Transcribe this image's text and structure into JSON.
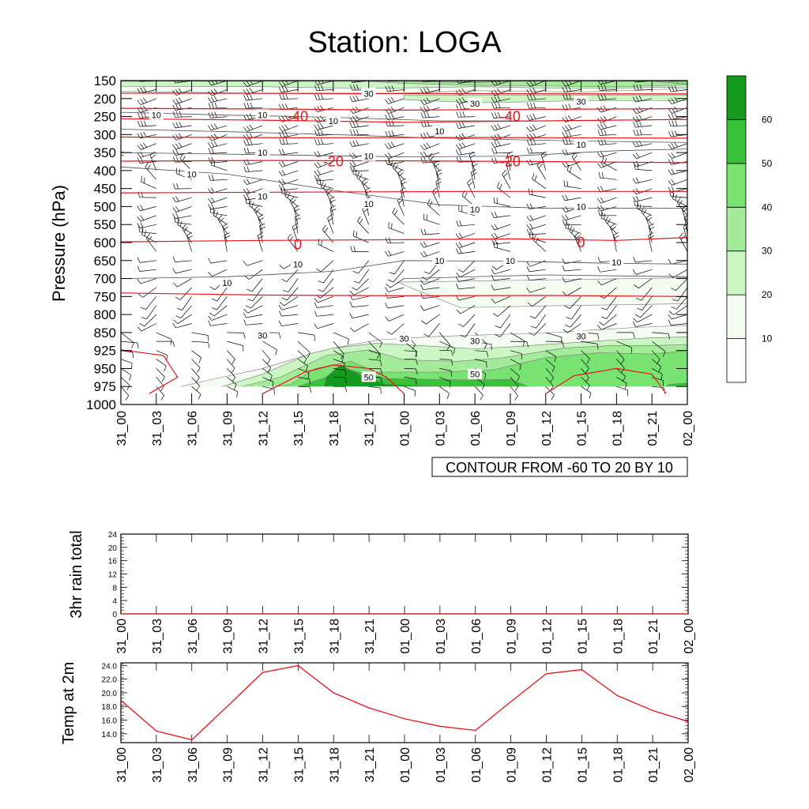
{
  "title": "Station: LOGA",
  "time_labels": [
    "31_00",
    "31_03",
    "31_06",
    "31_09",
    "31_12",
    "31_15",
    "31_18",
    "31_21",
    "01_00",
    "01_03",
    "01_06",
    "01_09",
    "01_12",
    "01_15",
    "01_18",
    "01_21",
    "02_00"
  ],
  "colors": {
    "temperature_contour": "#e8141a",
    "rh_fill_levels": [
      "#f4fcf2",
      "#ccf5c4",
      "#a3eb98",
      "#78e370",
      "#38c23a",
      "#149a1e"
    ],
    "wind_barb": "#000000",
    "rh_contour": "#4d4d4d"
  },
  "chart_data": [
    {
      "type": "contour",
      "ylabel": "Pressure (hPa)",
      "y_ticks": [
        150,
        200,
        250,
        300,
        350,
        400,
        450,
        500,
        550,
        600,
        650,
        700,
        750,
        800,
        850,
        925,
        950,
        975,
        1000
      ],
      "ylim": [
        1000,
        150
      ],
      "x": [
        "31_00",
        "31_03",
        "31_06",
        "31_09",
        "31_12",
        "31_15",
        "31_18",
        "31_21",
        "01_00",
        "01_03",
        "01_06",
        "01_09",
        "01_12",
        "01_15",
        "01_18",
        "01_21",
        "02_00"
      ],
      "info_label": "CONTOUR FROM -60 TO 20 BY 10",
      "colorbar": {
        "levels": [
          10,
          20,
          30,
          40,
          50,
          60
        ]
      },
      "temperature_contour_labels": [
        {
          "value": "-40",
          "time": "31_15",
          "pressure": 250
        },
        {
          "value": "-40",
          "time": "01_09",
          "pressure": 250
        },
        {
          "value": "-20",
          "time": "31_18",
          "pressure": 375
        },
        {
          "value": "-20",
          "time": "01_09",
          "pressure": 375
        },
        {
          "value": "0",
          "time": "31_15",
          "pressure": 605
        },
        {
          "value": "0",
          "time": "01_15",
          "pressure": 600
        }
      ],
      "rh_contour_labels": [
        {
          "value": "30",
          "time": "31_21",
          "pressure": 186
        },
        {
          "value": "30",
          "time": "01_06",
          "pressure": 214
        },
        {
          "value": "30",
          "time": "01_15",
          "pressure": 208
        },
        {
          "value": "10",
          "time": "31_03",
          "pressure": 245
        },
        {
          "value": "10",
          "time": "31_12",
          "pressure": 245
        },
        {
          "value": "10",
          "time": "31_18",
          "pressure": 262
        },
        {
          "value": "10",
          "time": "01_03",
          "pressure": 290
        },
        {
          "value": "10",
          "time": "01_15",
          "pressure": 328
        },
        {
          "value": "10",
          "time": "31_12",
          "pressure": 350
        },
        {
          "value": "10",
          "time": "31_21",
          "pressure": 360
        },
        {
          "value": "10",
          "time": "31_06",
          "pressure": 410
        },
        {
          "value": "10",
          "time": "31_12",
          "pressure": 472
        },
        {
          "value": "10",
          "time": "31_21",
          "pressure": 492
        },
        {
          "value": "10",
          "time": "01_06",
          "pressure": 508
        },
        {
          "value": "10",
          "time": "01_15",
          "pressure": 500
        },
        {
          "value": "10",
          "time": "01_03",
          "pressure": 650
        },
        {
          "value": "10",
          "time": "31_15",
          "pressure": 660
        },
        {
          "value": "10",
          "time": "01_09",
          "pressure": 650
        },
        {
          "value": "10",
          "time": "01_18",
          "pressure": 655
        },
        {
          "value": "10",
          "time": "31_09",
          "pressure": 712
        },
        {
          "value": "30",
          "time": "31_12",
          "pressure": 862
        },
        {
          "value": "30",
          "time": "01_00",
          "pressure": 875
        },
        {
          "value": "30",
          "time": "01_06",
          "pressure": 885
        },
        {
          "value": "30",
          "time": "01_15",
          "pressure": 865
        },
        {
          "value": "50",
          "time": "31_21",
          "pressure": 962
        },
        {
          "value": "50",
          "time": "01_06",
          "pressure": 958
        }
      ]
    },
    {
      "type": "line",
      "ylabel": "3hr rain total",
      "x": [
        "31_00",
        "31_03",
        "31_06",
        "31_09",
        "31_12",
        "31_15",
        "31_18",
        "31_21",
        "01_00",
        "01_03",
        "01_06",
        "01_09",
        "01_12",
        "01_15",
        "01_18",
        "01_21",
        "02_00"
      ],
      "y_ticks": [
        0,
        4,
        8,
        12,
        16,
        20,
        24
      ],
      "ylim": [
        0,
        24
      ],
      "values": [
        0,
        0,
        0,
        0,
        0,
        0,
        0,
        0,
        0,
        0,
        0,
        0,
        0,
        0,
        0,
        0,
        0
      ]
    },
    {
      "type": "line",
      "ylabel": "Temp at 2m",
      "x": [
        "31_00",
        "31_03",
        "31_06",
        "31_09",
        "31_12",
        "31_15",
        "31_18",
        "31_21",
        "01_00",
        "01_03",
        "01_06",
        "01_09",
        "01_12",
        "01_15",
        "01_18",
        "01_21",
        "02_00"
      ],
      "y_ticks": [
        "14.0",
        "16.0",
        "18.0",
        "20.0",
        "22.0",
        "24.0"
      ],
      "ylim": [
        12.7,
        24.4
      ],
      "values": [
        18.9,
        14.4,
        13.1,
        18.0,
        23.0,
        24.0,
        20.0,
        17.8,
        16.2,
        15.1,
        14.5,
        18.7,
        22.8,
        23.4,
        19.6,
        17.4,
        15.8
      ]
    }
  ]
}
